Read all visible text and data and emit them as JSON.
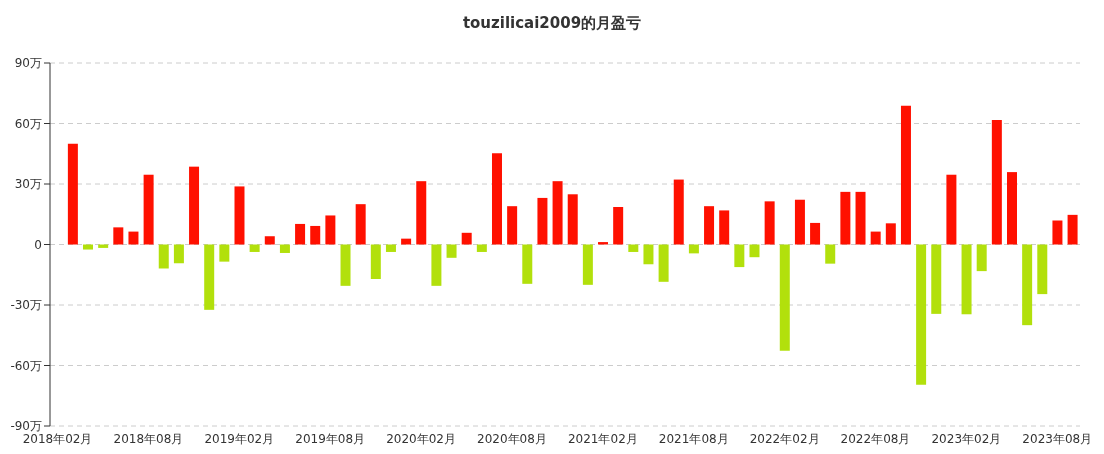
{
  "chart_data": {
    "type": "bar",
    "title": "touzilicai2009的月盈亏",
    "categories": [
      "2018年02月",
      null,
      null,
      null,
      null,
      null,
      "2018年08月",
      null,
      null,
      null,
      null,
      null,
      "2019年02月",
      null,
      null,
      null,
      null,
      null,
      "2019年08月",
      null,
      null,
      null,
      null,
      null,
      "2020年02月",
      null,
      null,
      null,
      null,
      null,
      "2020年08月",
      null,
      null,
      null,
      null,
      null,
      "2021年02月",
      null,
      null,
      null,
      null,
      null,
      "2021年08月",
      null,
      null,
      null,
      null,
      null,
      "2022年02月",
      null,
      null,
      null,
      null,
      null,
      "2022年08月",
      null,
      null,
      null,
      null,
      null,
      "2023年02月",
      null,
      null,
      null,
      null,
      null,
      "2023年08月",
      null
    ],
    "values": [
      null,
      50,
      -2.5,
      -1.7,
      8.5,
      6.4,
      34.6,
      -11.9,
      -9.3,
      38.6,
      -32.4,
      -8.5,
      28.8,
      -3.7,
      4.1,
      -4.2,
      10.2,
      9.2,
      14.4,
      -20.5,
      20,
      -17.1,
      -3.7,
      2.9,
      31.4,
      -20.5,
      -6.6,
      5.8,
      -3.7,
      45.3,
      19,
      -19.5,
      23.1,
      31.4,
      24.9,
      -20,
      1.2,
      18.6,
      -3.7,
      -9.8,
      -18.5,
      32.2,
      -4.4,
      19,
      16.9,
      -11.2,
      -6.3,
      21.4,
      -52.7,
      22.2,
      10.7,
      -9.5,
      26.1,
      26.1,
      6.4,
      10.5,
      68.8,
      -69.5,
      -34.4,
      34.6,
      -34.6,
      -13.2,
      61.7,
      35.9,
      -40,
      -24.6,
      11.9,
      14.7
    ],
    "colors": [
      "#ff1000",
      "#ff1000",
      "#b2e00c",
      "#b2e00c",
      "#ff1000",
      "#ff1000",
      "#ff1000",
      "#b2e00c",
      "#b2e00c",
      "#ff1000",
      "#b2e00c",
      "#b2e00c",
      "#ff1000",
      "#b2e00c",
      "#ff1000",
      "#b2e00c",
      "#ff1000",
      "#ff1000",
      "#ff1000",
      "#b2e00c",
      "#ff1000",
      "#b2e00c",
      "#b2e00c",
      "#ff1000",
      "#ff1000",
      "#b2e00c",
      "#b2e00c",
      "#ff1000",
      "#b2e00c",
      "#ff1000",
      "#ff1000",
      "#b2e00c",
      "#ff1000",
      "#ff1000",
      "#ff1000",
      "#b2e00c",
      "#ff1000",
      "#ff1000",
      "#b2e00c",
      "#b2e00c",
      "#b2e00c",
      "#ff1000",
      "#b2e00c",
      "#ff1000",
      "#ff1000",
      "#b2e00c",
      "#b2e00c",
      "#ff1000",
      "#b2e00c",
      "#ff1000",
      "#ff1000",
      "#b2e00c",
      "#ff1000",
      "#ff1000",
      "#ff1000",
      "#ff1000",
      "#ff1000",
      "#b2e00c",
      "#b2e00c",
      "#ff1000",
      "#b2e00c",
      "#b2e00c",
      "#ff1000",
      "#ff1000",
      "#b2e00c",
      "#b2e00c",
      "#ff1000",
      "#ff1000"
    ],
    "ylim": [
      -90,
      90
    ],
    "yticks": [
      {
        "value": -90,
        "label": "-90万"
      },
      {
        "value": -60,
        "label": "-60万"
      },
      {
        "value": -30,
        "label": "-30万"
      },
      0,
      {
        "value": 30,
        "label": "30万"
      },
      {
        "value": 60,
        "label": "60万"
      },
      {
        "value": 90,
        "label": "90万"
      }
    ],
    "grid": "y"
  }
}
